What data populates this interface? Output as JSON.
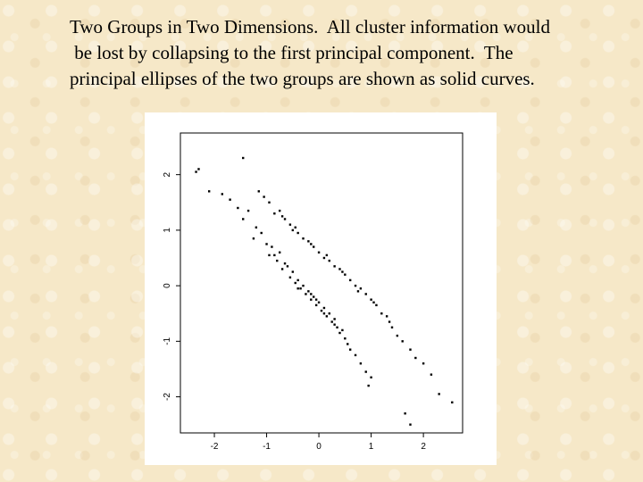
{
  "slide": {
    "text_lines": [
      "Two Groups in Two Dimensions.  All cluster information would",
      " be lost by collapsing to the first principal component.  The",
      "principal ellipses of the two groups are shown as solid curves."
    ]
  },
  "chart_data": {
    "type": "scatter",
    "title": "",
    "xlabel": "",
    "ylabel": "",
    "xlim": [
      -2.65,
      2.75
    ],
    "ylim": [
      -2.65,
      2.75
    ],
    "xticks": [
      -2,
      -1,
      0,
      1,
      2
    ],
    "xtick_labels": [
      "-2",
      "-1",
      "0",
      "1",
      "2"
    ],
    "yticks": [
      -2,
      -1,
      0,
      1,
      2
    ],
    "ytick_labels": [
      "-2",
      "-1",
      "0",
      "1",
      "2"
    ],
    "grid": false,
    "legend": "none",
    "point_color": "#000000",
    "series": [
      {
        "values_note": "",
        "points": [
          [
            -2.35,
            2.05
          ],
          [
            -2.3,
            2.1
          ],
          [
            -1.45,
            2.3
          ],
          [
            -2.1,
            1.7
          ],
          [
            -1.85,
            1.65
          ],
          [
            -1.7,
            1.55
          ],
          [
            -1.55,
            1.4
          ],
          [
            -1.45,
            1.2
          ],
          [
            -1.35,
            1.35
          ],
          [
            -1.2,
            1.05
          ],
          [
            -1.1,
            0.95
          ],
          [
            -1.25,
            0.85
          ],
          [
            -1.0,
            0.75
          ],
          [
            -0.9,
            0.7
          ],
          [
            -0.95,
            0.55
          ],
          [
            -0.8,
            0.45
          ],
          [
            -0.75,
            0.6
          ],
          [
            -0.7,
            0.3
          ],
          [
            -0.6,
            0.35
          ],
          [
            -0.55,
            0.15
          ],
          [
            -0.5,
            0.25
          ],
          [
            -0.45,
            0.05
          ],
          [
            -0.4,
            0.1
          ],
          [
            -0.35,
            -0.05
          ],
          [
            -0.3,
            0.0
          ],
          [
            -0.25,
            -0.15
          ],
          [
            -0.2,
            -0.1
          ],
          [
            -0.15,
            -0.25
          ],
          [
            -0.1,
            -0.2
          ],
          [
            -0.05,
            -0.35
          ],
          [
            0.0,
            -0.3
          ],
          [
            0.05,
            -0.45
          ],
          [
            0.1,
            -0.4
          ],
          [
            0.15,
            -0.55
          ],
          [
            0.2,
            -0.5
          ],
          [
            0.25,
            -0.65
          ],
          [
            0.3,
            -0.6
          ],
          [
            0.35,
            -0.75
          ],
          [
            0.4,
            -0.85
          ],
          [
            0.45,
            -0.8
          ],
          [
            0.5,
            -0.95
          ],
          [
            0.55,
            -1.05
          ],
          [
            0.6,
            -1.15
          ],
          [
            0.7,
            -1.25
          ],
          [
            0.8,
            -1.4
          ],
          [
            0.9,
            -1.55
          ],
          [
            0.95,
            -1.8
          ],
          [
            1.0,
            -1.65
          ],
          [
            -0.65,
            0.4
          ],
          [
            -0.4,
            -0.05
          ],
          [
            -0.15,
            -0.15
          ],
          [
            0.1,
            -0.5
          ],
          [
            0.3,
            -0.7
          ],
          [
            -0.85,
            0.55
          ],
          [
            -0.05,
            -0.25
          ]
        ]
      },
      {
        "values_note": "",
        "points": [
          [
            -1.15,
            1.7
          ],
          [
            -1.05,
            1.6
          ],
          [
            -0.95,
            1.5
          ],
          [
            -0.85,
            1.3
          ],
          [
            -0.75,
            1.35
          ],
          [
            -0.65,
            1.2
          ],
          [
            -0.55,
            1.1
          ],
          [
            -0.5,
            1.0
          ],
          [
            -0.4,
            0.95
          ],
          [
            -0.3,
            0.85
          ],
          [
            -0.2,
            0.8
          ],
          [
            -0.1,
            0.7
          ],
          [
            0.0,
            0.6
          ],
          [
            0.1,
            0.5
          ],
          [
            0.2,
            0.45
          ],
          [
            0.3,
            0.35
          ],
          [
            0.4,
            0.3
          ],
          [
            0.5,
            0.2
          ],
          [
            0.6,
            0.1
          ],
          [
            0.7,
            0.0
          ],
          [
            0.8,
            -0.05
          ],
          [
            0.9,
            -0.15
          ],
          [
            1.0,
            -0.25
          ],
          [
            1.1,
            -0.35
          ],
          [
            1.2,
            -0.5
          ],
          [
            1.3,
            -0.55
          ],
          [
            1.4,
            -0.75
          ],
          [
            1.5,
            -0.9
          ],
          [
            1.6,
            -1.0
          ],
          [
            1.75,
            -1.15
          ],
          [
            1.85,
            -1.3
          ],
          [
            2.0,
            -1.4
          ],
          [
            2.15,
            -1.6
          ],
          [
            2.3,
            -1.95
          ],
          [
            2.55,
            -2.1
          ],
          [
            1.65,
            -2.3
          ],
          [
            1.75,
            -2.5
          ],
          [
            -0.45,
            1.05
          ],
          [
            -0.15,
            0.75
          ],
          [
            0.15,
            0.55
          ],
          [
            0.45,
            0.25
          ],
          [
            0.75,
            -0.1
          ],
          [
            1.05,
            -0.3
          ],
          [
            1.35,
            -0.65
          ],
          [
            -0.7,
            1.25
          ]
        ]
      }
    ]
  }
}
